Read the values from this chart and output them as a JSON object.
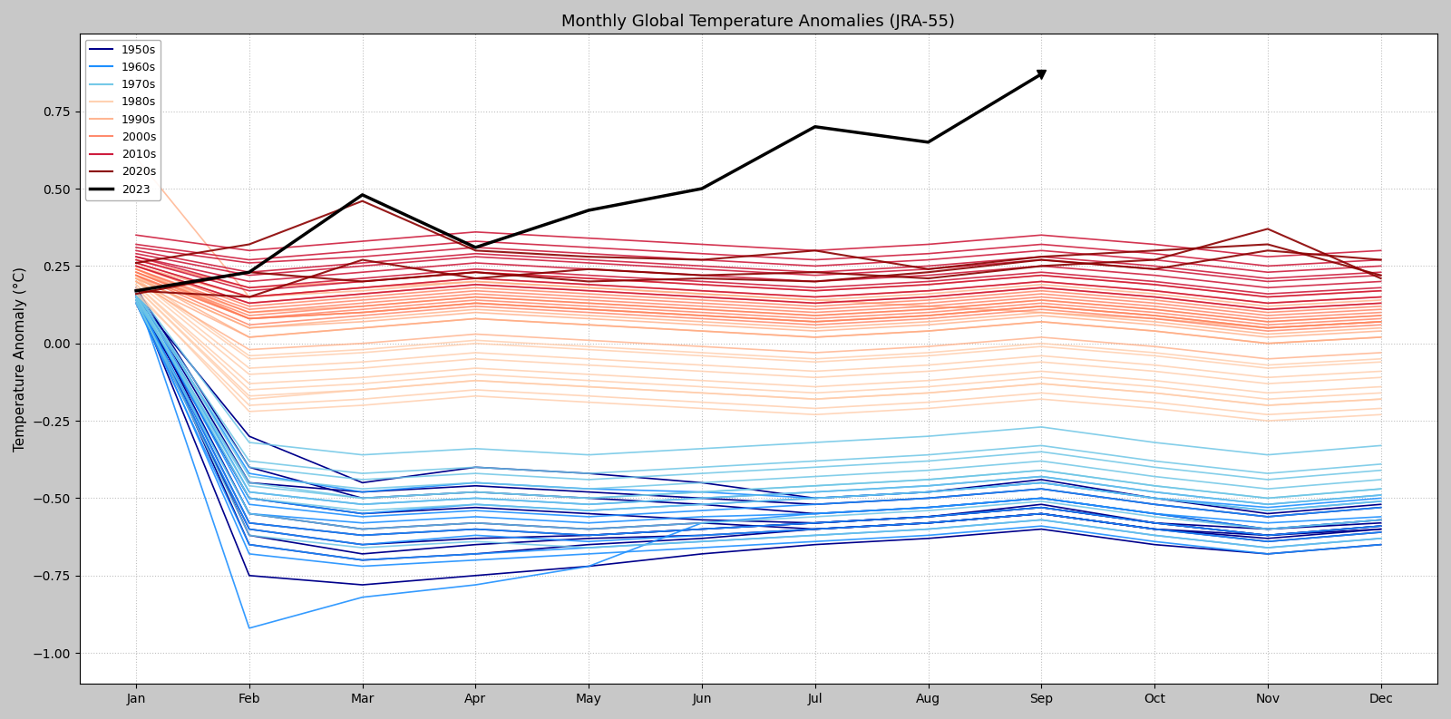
{
  "title": "Monthly Global Temperature Anomalies (JRA-55)",
  "ylabel": "Temperature Anomaly (°C)",
  "months": [
    "Jan",
    "Feb",
    "Mar",
    "Apr",
    "May",
    "Jun",
    "Jul",
    "Aug",
    "Sep",
    "Oct",
    "Nov",
    "Dec"
  ],
  "ylim": [
    -1.1,
    1.0
  ],
  "yticks": [
    -1.0,
    -0.75,
    -0.5,
    -0.25,
    0.0,
    0.25,
    0.5,
    0.75
  ],
  "decades": {
    "1950s": {
      "color": "#00008B",
      "alpha": 1.0,
      "lw": 1.2,
      "years": {
        "1950": [
          0.15,
          -0.3,
          -0.45,
          -0.4,
          -0.42,
          -0.45,
          -0.5,
          -0.48,
          -0.44,
          -0.5,
          -0.55,
          -0.52
        ],
        "1951": [
          0.18,
          -0.4,
          -0.5,
          -0.48,
          -0.5,
          -0.52,
          -0.55,
          -0.53,
          -0.5,
          -0.55,
          -0.6,
          -0.57
        ],
        "1952": [
          0.16,
          -0.55,
          -0.6,
          -0.58,
          -0.6,
          -0.58,
          -0.6,
          -0.58,
          -0.55,
          -0.6,
          -0.62,
          -0.6
        ],
        "1953": [
          0.17,
          -0.65,
          -0.7,
          -0.68,
          -0.65,
          -0.63,
          -0.6,
          -0.58,
          -0.55,
          -0.6,
          -0.63,
          -0.6
        ],
        "1954": [
          0.14,
          -0.5,
          -0.55,
          -0.53,
          -0.55,
          -0.57,
          -0.58,
          -0.56,
          -0.52,
          -0.58,
          -0.6,
          -0.58
        ],
        "1955": [
          0.15,
          -0.75,
          -0.78,
          -0.75,
          -0.72,
          -0.68,
          -0.65,
          -0.63,
          -0.6,
          -0.65,
          -0.68,
          -0.65
        ],
        "1956": [
          0.13,
          -0.6,
          -0.65,
          -0.63,
          -0.62,
          -0.6,
          -0.58,
          -0.56,
          -0.53,
          -0.58,
          -0.62,
          -0.59
        ],
        "1957": [
          0.17,
          -0.45,
          -0.48,
          -0.46,
          -0.48,
          -0.5,
          -0.52,
          -0.5,
          -0.47,
          -0.52,
          -0.56,
          -0.53
        ],
        "1958": [
          0.15,
          -0.58,
          -0.62,
          -0.6,
          -0.62,
          -0.6,
          -0.58,
          -0.56,
          -0.53,
          -0.58,
          -0.62,
          -0.59
        ],
        "1959": [
          0.16,
          -0.62,
          -0.68,
          -0.65,
          -0.63,
          -0.62,
          -0.6,
          -0.58,
          -0.55,
          -0.6,
          -0.64,
          -0.61
        ]
      }
    },
    "1960s": {
      "color": "#1E90FF",
      "alpha": 0.9,
      "lw": 1.2,
      "years": {
        "1960": [
          0.15,
          -0.5,
          -0.55,
          -0.52,
          -0.54,
          -0.52,
          -0.5,
          -0.48,
          -0.45,
          -0.5,
          -0.54,
          -0.51
        ],
        "1961": [
          0.17,
          -0.42,
          -0.48,
          -0.45,
          -0.47,
          -0.48,
          -0.5,
          -0.48,
          -0.45,
          -0.5,
          -0.53,
          -0.5
        ],
        "1962": [
          0.14,
          -0.55,
          -0.58,
          -0.56,
          -0.58,
          -0.56,
          -0.55,
          -0.53,
          -0.5,
          -0.55,
          -0.58,
          -0.56
        ],
        "1963": [
          0.16,
          -0.92,
          -0.82,
          -0.78,
          -0.72,
          -0.58,
          -0.55,
          -0.53,
          -0.5,
          -0.55,
          -0.6,
          -0.57
        ],
        "1964": [
          0.13,
          -0.65,
          -0.7,
          -0.68,
          -0.66,
          -0.64,
          -0.62,
          -0.6,
          -0.57,
          -0.62,
          -0.66,
          -0.63
        ],
        "1965": [
          0.15,
          -0.68,
          -0.72,
          -0.7,
          -0.68,
          -0.66,
          -0.64,
          -0.62,
          -0.59,
          -0.64,
          -0.68,
          -0.65
        ],
        "1966": [
          0.16,
          -0.52,
          -0.56,
          -0.54,
          -0.56,
          -0.54,
          -0.52,
          -0.5,
          -0.47,
          -0.52,
          -0.56,
          -0.53
        ],
        "1967": [
          0.14,
          -0.6,
          -0.65,
          -0.62,
          -0.64,
          -0.62,
          -0.6,
          -0.58,
          -0.55,
          -0.6,
          -0.64,
          -0.61
        ],
        "1968": [
          0.15,
          -0.58,
          -0.62,
          -0.6,
          -0.62,
          -0.6,
          -0.58,
          -0.56,
          -0.53,
          -0.58,
          -0.62,
          -0.59
        ],
        "1969": [
          0.17,
          -0.48,
          -0.52,
          -0.5,
          -0.52,
          -0.5,
          -0.48,
          -0.46,
          -0.43,
          -0.48,
          -0.52,
          -0.49
        ]
      }
    },
    "1970s": {
      "color": "#6EC6E6",
      "alpha": 0.85,
      "lw": 1.2,
      "years": {
        "1970": [
          0.16,
          -0.38,
          -0.42,
          -0.4,
          -0.42,
          -0.4,
          -0.38,
          -0.36,
          -0.33,
          -0.38,
          -0.42,
          -0.39
        ],
        "1971": [
          0.14,
          -0.45,
          -0.5,
          -0.48,
          -0.5,
          -0.48,
          -0.46,
          -0.44,
          -0.41,
          -0.46,
          -0.5,
          -0.47
        ],
        "1972": [
          0.15,
          -0.4,
          -0.44,
          -0.42,
          -0.44,
          -0.42,
          -0.4,
          -0.38,
          -0.35,
          -0.4,
          -0.44,
          -0.41
        ],
        "1973": [
          0.17,
          -0.32,
          -0.36,
          -0.34,
          -0.36,
          -0.34,
          -0.32,
          -0.3,
          -0.27,
          -0.32,
          -0.36,
          -0.33
        ],
        "1974": [
          0.13,
          -0.55,
          -0.6,
          -0.58,
          -0.6,
          -0.58,
          -0.56,
          -0.54,
          -0.51,
          -0.56,
          -0.6,
          -0.57
        ],
        "1975": [
          0.15,
          -0.48,
          -0.52,
          -0.5,
          -0.52,
          -0.5,
          -0.48,
          -0.46,
          -0.43,
          -0.48,
          -0.52,
          -0.49
        ],
        "1976": [
          0.14,
          -0.62,
          -0.66,
          -0.64,
          -0.66,
          -0.64,
          -0.62,
          -0.6,
          -0.57,
          -0.62,
          -0.66,
          -0.63
        ],
        "1977": [
          0.16,
          -0.5,
          -0.54,
          -0.52,
          -0.54,
          -0.52,
          -0.5,
          -0.48,
          -0.45,
          -0.5,
          -0.54,
          -0.51
        ],
        "1978": [
          0.17,
          -0.43,
          -0.47,
          -0.45,
          -0.47,
          -0.45,
          -0.43,
          -0.41,
          -0.38,
          -0.43,
          -0.47,
          -0.44
        ],
        "1979": [
          0.15,
          -0.46,
          -0.5,
          -0.48,
          -0.5,
          -0.48,
          -0.46,
          -0.44,
          -0.41,
          -0.46,
          -0.5,
          -0.47
        ]
      }
    },
    "1980s": {
      "color": "#FFCCAA",
      "alpha": 0.8,
      "lw": 1.2,
      "years": {
        "1980": [
          0.18,
          -0.18,
          -0.15,
          -0.12,
          -0.14,
          -0.16,
          -0.18,
          -0.16,
          -0.13,
          -0.16,
          -0.2,
          -0.18
        ],
        "1981": [
          0.2,
          -0.1,
          -0.08,
          -0.05,
          -0.07,
          -0.09,
          -0.11,
          -0.09,
          -0.06,
          -0.09,
          -0.13,
          -0.11
        ],
        "1982": [
          0.17,
          -0.22,
          -0.2,
          -0.17,
          -0.19,
          -0.21,
          -0.23,
          -0.21,
          -0.18,
          -0.21,
          -0.25,
          -0.23
        ],
        "1983": [
          0.21,
          -0.05,
          -0.03,
          0.0,
          -0.02,
          -0.04,
          -0.06,
          -0.04,
          -0.01,
          -0.04,
          -0.08,
          -0.06
        ],
        "1984": [
          0.19,
          -0.15,
          -0.13,
          -0.1,
          -0.12,
          -0.14,
          -0.16,
          -0.14,
          -0.11,
          -0.14,
          -0.18,
          -0.16
        ],
        "1985": [
          0.16,
          -0.2,
          -0.18,
          -0.15,
          -0.17,
          -0.19,
          -0.21,
          -0.19,
          -0.16,
          -0.19,
          -0.23,
          -0.21
        ],
        "1986": [
          0.18,
          -0.17,
          -0.15,
          -0.12,
          -0.14,
          -0.16,
          -0.18,
          -0.16,
          -0.13,
          -0.16,
          -0.2,
          -0.18
        ],
        "1987": [
          0.21,
          -0.08,
          -0.06,
          -0.03,
          -0.05,
          -0.07,
          -0.09,
          -0.07,
          -0.04,
          -0.07,
          -0.11,
          -0.09
        ],
        "1988": [
          0.22,
          -0.04,
          -0.02,
          0.01,
          -0.01,
          -0.03,
          -0.05,
          -0.03,
          0.0,
          -0.03,
          -0.07,
          -0.05
        ],
        "1989": [
          0.19,
          -0.13,
          -0.11,
          -0.08,
          -0.1,
          -0.12,
          -0.14,
          -0.12,
          -0.09,
          -0.12,
          -0.16,
          -0.14
        ]
      }
    },
    "1990s": {
      "color": "#FFAA80",
      "alpha": 0.75,
      "lw": 1.2,
      "years": {
        "1990": [
          0.22,
          0.02,
          0.05,
          0.08,
          0.06,
          0.04,
          0.02,
          0.04,
          0.07,
          0.04,
          0.0,
          0.02
        ],
        "1991": [
          0.24,
          0.08,
          0.1,
          0.13,
          0.11,
          0.09,
          0.07,
          0.09,
          0.12,
          0.09,
          0.05,
          0.07
        ],
        "1992": [
          0.6,
          0.15,
          0.18,
          0.2,
          0.18,
          0.16,
          0.14,
          0.12,
          0.1,
          0.08,
          0.05,
          0.07
        ],
        "1993": [
          0.2,
          -0.02,
          0.0,
          0.03,
          0.01,
          -0.01,
          -0.03,
          -0.01,
          0.02,
          -0.01,
          -0.05,
          -0.03
        ],
        "1994": [
          0.21,
          0.05,
          0.07,
          0.1,
          0.08,
          0.06,
          0.04,
          0.06,
          0.09,
          0.06,
          0.02,
          0.04
        ],
        "1995": [
          0.23,
          0.1,
          0.12,
          0.15,
          0.13,
          0.11,
          0.09,
          0.11,
          0.14,
          0.11,
          0.07,
          0.09
        ],
        "1996": [
          0.2,
          0.02,
          0.05,
          0.08,
          0.06,
          0.04,
          0.02,
          0.04,
          0.07,
          0.04,
          0.0,
          0.02
        ],
        "1997": [
          0.22,
          0.08,
          0.1,
          0.13,
          0.11,
          0.09,
          0.07,
          0.09,
          0.12,
          0.09,
          0.05,
          0.07
        ],
        "1998": [
          0.25,
          0.15,
          0.17,
          0.2,
          0.18,
          0.16,
          0.14,
          0.16,
          0.19,
          0.16,
          0.12,
          0.14
        ],
        "1999": [
          0.21,
          0.05,
          0.08,
          0.11,
          0.09,
          0.07,
          0.05,
          0.07,
          0.1,
          0.07,
          0.03,
          0.05
        ]
      }
    },
    "2000s": {
      "color": "#FF7755",
      "alpha": 0.75,
      "lw": 1.2,
      "years": {
        "2000": [
          0.22,
          0.08,
          0.1,
          0.13,
          0.11,
          0.09,
          0.07,
          0.09,
          0.12,
          0.09,
          0.05,
          0.07
        ],
        "2001": [
          0.25,
          0.12,
          0.15,
          0.18,
          0.16,
          0.14,
          0.12,
          0.14,
          0.17,
          0.14,
          0.1,
          0.12
        ],
        "2002": [
          0.27,
          0.18,
          0.2,
          0.23,
          0.21,
          0.19,
          0.17,
          0.19,
          0.22,
          0.19,
          0.15,
          0.17
        ],
        "2003": [
          0.24,
          0.1,
          0.13,
          0.16,
          0.14,
          0.12,
          0.1,
          0.12,
          0.15,
          0.12,
          0.08,
          0.1
        ],
        "2004": [
          0.23,
          0.08,
          0.11,
          0.14,
          0.12,
          0.1,
          0.08,
          0.1,
          0.13,
          0.1,
          0.06,
          0.08
        ],
        "2005": [
          0.26,
          0.15,
          0.18,
          0.21,
          0.19,
          0.17,
          0.15,
          0.17,
          0.2,
          0.17,
          0.13,
          0.15
        ],
        "2006": [
          0.23,
          0.09,
          0.12,
          0.15,
          0.13,
          0.11,
          0.09,
          0.11,
          0.14,
          0.11,
          0.07,
          0.09
        ],
        "2007": [
          0.25,
          0.13,
          0.16,
          0.19,
          0.17,
          0.15,
          0.13,
          0.15,
          0.18,
          0.15,
          0.11,
          0.13
        ],
        "2008": [
          0.22,
          0.06,
          0.09,
          0.12,
          0.1,
          0.08,
          0.06,
          0.08,
          0.11,
          0.08,
          0.04,
          0.06
        ],
        "2009": [
          0.24,
          0.11,
          0.14,
          0.17,
          0.15,
          0.13,
          0.11,
          0.13,
          0.16,
          0.13,
          0.09,
          0.11
        ]
      }
    },
    "2010s": {
      "color": "#CC1133",
      "alpha": 0.85,
      "lw": 1.2,
      "years": {
        "2010": [
          0.28,
          0.2,
          0.23,
          0.26,
          0.24,
          0.22,
          0.2,
          0.22,
          0.25,
          0.22,
          0.18,
          0.2
        ],
        "2011": [
          0.26,
          0.15,
          0.18,
          0.21,
          0.19,
          0.17,
          0.15,
          0.17,
          0.2,
          0.17,
          0.13,
          0.15
        ],
        "2012": [
          0.25,
          0.13,
          0.16,
          0.19,
          0.17,
          0.15,
          0.13,
          0.15,
          0.18,
          0.15,
          0.11,
          0.13
        ],
        "2013": [
          0.27,
          0.17,
          0.2,
          0.23,
          0.21,
          0.19,
          0.17,
          0.19,
          0.22,
          0.19,
          0.15,
          0.17
        ],
        "2014": [
          0.29,
          0.22,
          0.25,
          0.28,
          0.26,
          0.24,
          0.22,
          0.24,
          0.27,
          0.24,
          0.2,
          0.22
        ],
        "2015": [
          0.31,
          0.26,
          0.28,
          0.31,
          0.29,
          0.27,
          0.25,
          0.27,
          0.3,
          0.27,
          0.23,
          0.25
        ],
        "2016": [
          0.35,
          0.3,
          0.33,
          0.36,
          0.34,
          0.32,
          0.3,
          0.32,
          0.35,
          0.32,
          0.28,
          0.3
        ],
        "2017": [
          0.3,
          0.23,
          0.26,
          0.29,
          0.27,
          0.25,
          0.23,
          0.25,
          0.28,
          0.25,
          0.21,
          0.23
        ],
        "2018": [
          0.28,
          0.18,
          0.21,
          0.24,
          0.22,
          0.2,
          0.18,
          0.2,
          0.23,
          0.2,
          0.16,
          0.18
        ],
        "2019": [
          0.32,
          0.27,
          0.3,
          0.33,
          0.31,
          0.29,
          0.27,
          0.29,
          0.32,
          0.29,
          0.25,
          0.27
        ]
      }
    },
    "2020s": {
      "color": "#8B0000",
      "alpha": 0.9,
      "lw": 1.5,
      "years": {
        "2020": [
          0.26,
          0.32,
          0.46,
          0.3,
          0.28,
          0.27,
          0.3,
          0.24,
          0.28,
          0.3,
          0.32,
          0.22
        ],
        "2021": [
          0.16,
          0.23,
          0.2,
          0.23,
          0.2,
          0.21,
          0.2,
          0.23,
          0.27,
          0.24,
          0.3,
          0.27
        ],
        "2022": [
          0.17,
          0.15,
          0.27,
          0.21,
          0.24,
          0.22,
          0.23,
          0.21,
          0.25,
          0.27,
          0.37,
          0.21
        ]
      }
    }
  },
  "year_2023": {
    "color": "#000000",
    "lw": 2.5,
    "marker": "v",
    "markersize": 7,
    "data": [
      0.17,
      0.23,
      0.48,
      0.31,
      0.43,
      0.5,
      0.7,
      0.65,
      0.87,
      null,
      null,
      null
    ]
  },
  "background_color": "#ffffff",
  "grid_color": "#c0c0c0",
  "grid_style": ":",
  "outer_bg": "#c8c8c8",
  "legend_loc": "upper left",
  "legend_fontsize": 9,
  "title_fontsize": 13,
  "axis_fontsize": 10,
  "ylabel_fontsize": 11
}
